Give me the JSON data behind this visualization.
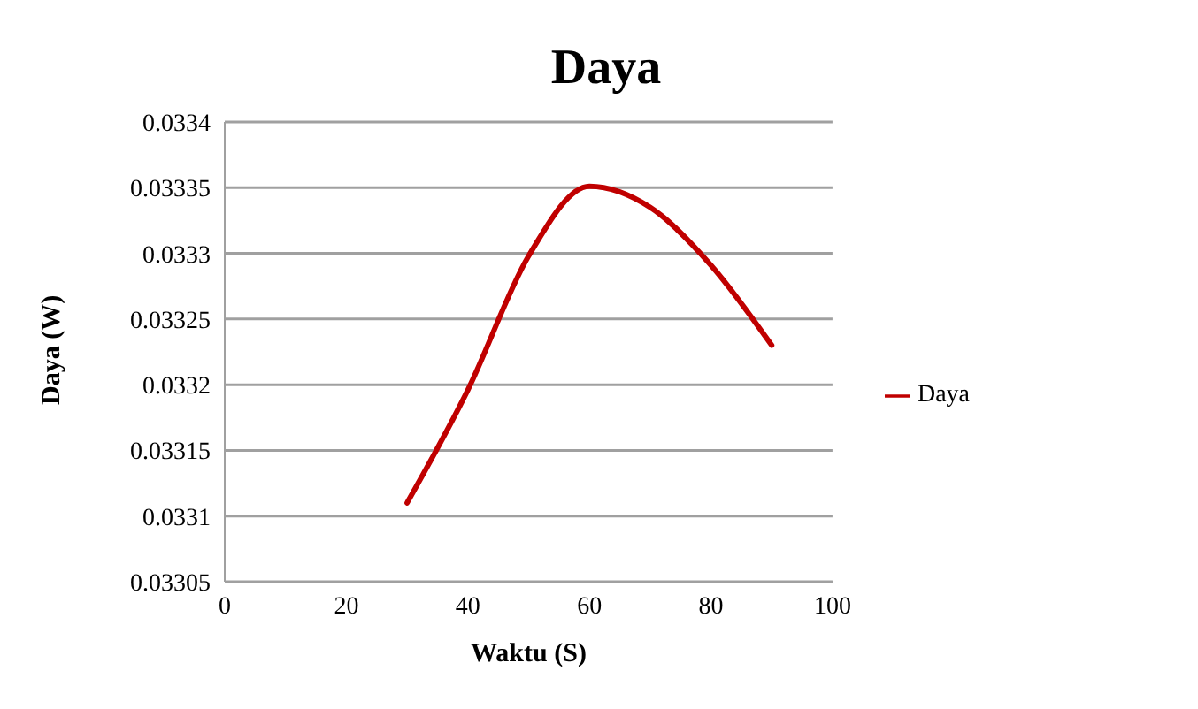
{
  "chart_data": {
    "type": "line",
    "title": "Daya",
    "xlabel": "Waktu (S)",
    "ylabel": "Daya (W)",
    "x": [
      30,
      40,
      50,
      60,
      70,
      80,
      90
    ],
    "series": [
      {
        "name": "Daya",
        "color": "#c00000",
        "values": [
          0.03311,
          0.033196,
          0.033298,
          0.033351,
          0.033335,
          0.033291,
          0.03323
        ]
      }
    ],
    "xlim": [
      0,
      100
    ],
    "xticks": [
      0,
      20,
      40,
      60,
      80,
      100
    ],
    "ylim": [
      0.03305,
      0.0334
    ],
    "yticks": [
      0.03305,
      0.0331,
      0.03315,
      0.0332,
      0.03325,
      0.0333,
      0.03335,
      0.0334
    ],
    "grid": "y",
    "legend": "right",
    "marker": "none",
    "line_style": "solid"
  }
}
